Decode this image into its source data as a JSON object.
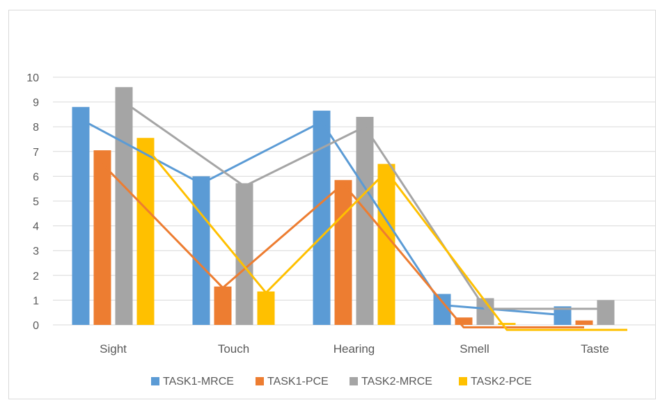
{
  "chart_data": {
    "type": "bar",
    "categories": [
      "Sight",
      "Touch",
      "Hearing",
      "Smell",
      "Taste"
    ],
    "series": [
      {
        "name": "TASK1-MRCE",
        "color": "#5b9bd5",
        "values": [
          8.8,
          6.0,
          8.65,
          1.25,
          0.75
        ]
      },
      {
        "name": "TASK1-PCE",
        "color": "#ed7d31",
        "values": [
          7.05,
          1.55,
          5.85,
          0.3,
          0.18
        ]
      },
      {
        "name": "TASK2-MRCE",
        "color": "#a5a5a5",
        "values": [
          9.6,
          5.72,
          8.4,
          1.08,
          1.0
        ]
      },
      {
        "name": "TASK2-PCE",
        "color": "#ffc000",
        "values": [
          7.55,
          1.35,
          6.5,
          0.08,
          0.0
        ]
      }
    ],
    "trend_lines": [
      {
        "name": "TASK1-MRCE",
        "color": "#5b9bd5",
        "values": [
          8.3,
          5.7,
          8.2,
          0.8,
          0.4
        ]
      },
      {
        "name": "TASK1-PCE",
        "color": "#ed7d31",
        "values": [
          6.5,
          1.5,
          5.7,
          -0.1,
          -0.1
        ]
      },
      {
        "name": "TASK2-MRCE",
        "color": "#a5a5a5",
        "values": [
          9.0,
          5.6,
          8.0,
          0.65,
          0.65
        ]
      },
      {
        "name": "TASK2-PCE",
        "color": "#ffc000",
        "values": [
          7.2,
          1.3,
          6.2,
          -0.2,
          -0.2
        ]
      }
    ],
    "ylim": [
      0,
      10
    ],
    "yticks": [
      "0",
      "1",
      "2",
      "3",
      "4",
      "5",
      "6",
      "7",
      "8",
      "9",
      "10"
    ],
    "grid": true,
    "legend": "bottom",
    "title": "",
    "xlabel": "",
    "ylabel": ""
  }
}
